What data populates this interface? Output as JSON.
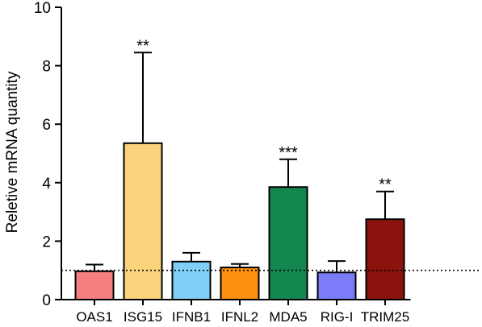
{
  "chart_data": {
    "type": "bar",
    "title": "",
    "xlabel": "",
    "ylabel": "Reletive mRNA quantity",
    "ylim": [
      0,
      10
    ],
    "yticks": [
      0,
      2,
      4,
      6,
      8,
      10
    ],
    "reference_line": 1,
    "grid": false,
    "categories": [
      "OAS1",
      "ISG15",
      "IFNB1",
      "IFNL2",
      "MDA5",
      "RIG-I",
      "TRIM25"
    ],
    "values": [
      0.97,
      5.35,
      1.3,
      1.1,
      3.85,
      0.93,
      2.75
    ],
    "error_upper": [
      1.2,
      8.45,
      1.6,
      1.22,
      4.8,
      1.32,
      3.7
    ],
    "significance": [
      "",
      "**",
      "",
      "",
      "***",
      "",
      "**"
    ],
    "colors": [
      "#F57F7F",
      "#FBD37C",
      "#7FCFF9",
      "#FB8F0F",
      "#13874F",
      "#7C7CF9",
      "#8C120D"
    ]
  }
}
